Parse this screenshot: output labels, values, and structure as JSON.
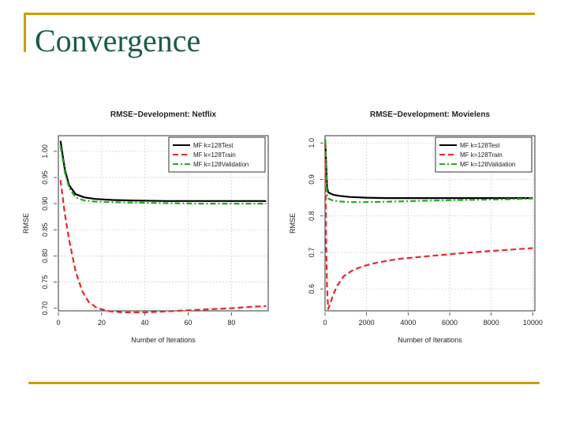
{
  "slide": {
    "title": "Convergence",
    "accent_color": "#c8a000",
    "title_color": "#1a5c48"
  },
  "chart_data": [
    {
      "type": "line",
      "title": "RMSE−Development: Netflix",
      "xlabel": "Number of Iterations",
      "ylabel": "RMSE",
      "xlim": [
        0,
        97
      ],
      "ylim": [
        0.695,
        1.03
      ],
      "xticks": [
        0,
        20,
        40,
        60,
        80
      ],
      "xtick_labels": [
        "0",
        "20",
        "40",
        "60",
        "80"
      ],
      "yticks": [
        0.7,
        0.75,
        0.8,
        0.85,
        0.9,
        0.95,
        1.0
      ],
      "ytick_labels": [
        "0.70",
        "0.75",
        "0.80",
        "0.85",
        "0.90",
        "0.95",
        "1.00"
      ],
      "grid": true,
      "legend_position": "top-right",
      "series": [
        {
          "name": "MF k=128Test",
          "color": "#000000",
          "style": "solid",
          "x": [
            1,
            3,
            5,
            8,
            12,
            17,
            25,
            35,
            50,
            65,
            80,
            96
          ],
          "y": [
            1.02,
            0.965,
            0.935,
            0.918,
            0.912,
            0.909,
            0.907,
            0.906,
            0.905,
            0.905,
            0.905,
            0.905
          ]
        },
        {
          "name": "MF k=128Train",
          "color": "#e8262a",
          "style": "dashed",
          "x": [
            1,
            3,
            5,
            8,
            11,
            14,
            18,
            24,
            30,
            40,
            50,
            60,
            70,
            80,
            90,
            96
          ],
          "y": [
            0.945,
            0.88,
            0.83,
            0.77,
            0.733,
            0.712,
            0.7,
            0.694,
            0.692,
            0.692,
            0.694,
            0.696,
            0.698,
            0.7,
            0.703,
            0.704
          ]
        },
        {
          "name": "MF k=128Validation",
          "color": "#22aa22",
          "style": "dotdash",
          "x": [
            1,
            3,
            5,
            8,
            12,
            17,
            25,
            35,
            50,
            65,
            80,
            96
          ],
          "y": [
            1.01,
            0.96,
            0.93,
            0.912,
            0.906,
            0.904,
            0.903,
            0.902,
            0.901,
            0.9,
            0.9,
            0.9
          ]
        }
      ]
    },
    {
      "type": "line",
      "title": "RMSE−Development: Movielens",
      "xlabel": "Number of Iterations",
      "ylabel": "RMSE",
      "xlim": [
        0,
        10100
      ],
      "ylim": [
        0.54,
        1.02
      ],
      "xticks": [
        0,
        2000,
        4000,
        6000,
        8000,
        10000
      ],
      "xtick_labels": [
        "0",
        "2000",
        "4000",
        "6000",
        "8000",
        "10000"
      ],
      "yticks": [
        0.6,
        0.7,
        0.8,
        0.9,
        1.0
      ],
      "ytick_labels": [
        "0.6",
        "0.7",
        "0.8",
        "0.9",
        "1.0"
      ],
      "grid": true,
      "legend_position": "top-right",
      "series": [
        {
          "name": "MF k=128Test",
          "color": "#000000",
          "style": "solid",
          "x": [
            10,
            50,
            100,
            150,
            250,
            400,
            700,
            1200,
            2000,
            3000,
            5000,
            7000,
            9000,
            10000
          ],
          "y": [
            1.01,
            0.95,
            0.88,
            0.865,
            0.862,
            0.858,
            0.855,
            0.852,
            0.85,
            0.849,
            0.849,
            0.849,
            0.849,
            0.849
          ]
        },
        {
          "name": "MF k=128Train",
          "color": "#e8262a",
          "style": "dashed",
          "x": [
            10,
            50,
            100,
            150,
            250,
            400,
            600,
            900,
            1300,
            1800,
            2500,
            3500,
            5000,
            7000,
            9000,
            10000
          ],
          "y": [
            1.0,
            0.75,
            0.6,
            0.545,
            0.56,
            0.585,
            0.61,
            0.635,
            0.65,
            0.662,
            0.672,
            0.682,
            0.69,
            0.7,
            0.708,
            0.712
          ]
        },
        {
          "name": "MF k=128Validation",
          "color": "#22aa22",
          "style": "dotdash",
          "x": [
            10,
            50,
            100,
            150,
            250,
            400,
            700,
            1200,
            2000,
            3000,
            5000,
            7000,
            9000,
            10000
          ],
          "y": [
            1.01,
            0.93,
            0.86,
            0.848,
            0.845,
            0.842,
            0.84,
            0.838,
            0.838,
            0.839,
            0.842,
            0.844,
            0.846,
            0.848
          ]
        }
      ]
    }
  ]
}
